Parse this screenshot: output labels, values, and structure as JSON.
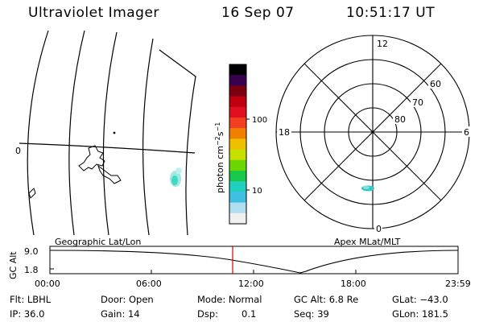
{
  "header": {
    "instrument": "Ultraviolet Imager",
    "date": "16 Sep 07",
    "time": "10:51:17 UT"
  },
  "colorbar": {
    "unit_label": "photon cm",
    "unit_exp1": "−2",
    "unit_s": "s",
    "unit_exp2": "−1",
    "tick_100": "100",
    "tick_10": "10",
    "colors": [
      "#000000",
      "#3a0050",
      "#7a0010",
      "#c00010",
      "#e01020",
      "#f04020",
      "#f08000",
      "#f0c000",
      "#c8e000",
      "#6ad800",
      "#18c84a",
      "#20d0c0",
      "#40c0e0",
      "#b0e0f0",
      "#f0f0f0"
    ]
  },
  "map_panel": {
    "left_label": "0",
    "caption": "Geographic Lat/Lon"
  },
  "polar_panel": {
    "mlt_top": "12",
    "mlt_left": "18",
    "mlt_right": "6",
    "mlt_bottom": "0",
    "lat_60": "60",
    "lat_70": "70",
    "lat_80": "80",
    "caption": "Apex MLat/MLT"
  },
  "altitude_plot": {
    "ylabel": "GC Alt",
    "y_top": "9.0",
    "y_bottom": "1.8",
    "x_ticks": [
      "00:00",
      "06:00",
      "12:00",
      "18:00",
      "23:59"
    ],
    "marker_color": "#e00000"
  },
  "footer": {
    "flt": "Flt: LBHL",
    "door": "Door: Open",
    "mode": "Mode: Normal",
    "gc_alt": "GC Alt: 6.8 Re",
    "glat": "GLat: −43.0",
    "ip": "IP: 36.0",
    "gain": "Gain: 14",
    "dsp_label": "Dsp:",
    "dsp_value": "0.1",
    "seq": "Seq: 39",
    "glon": "GLon: 181.5"
  }
}
